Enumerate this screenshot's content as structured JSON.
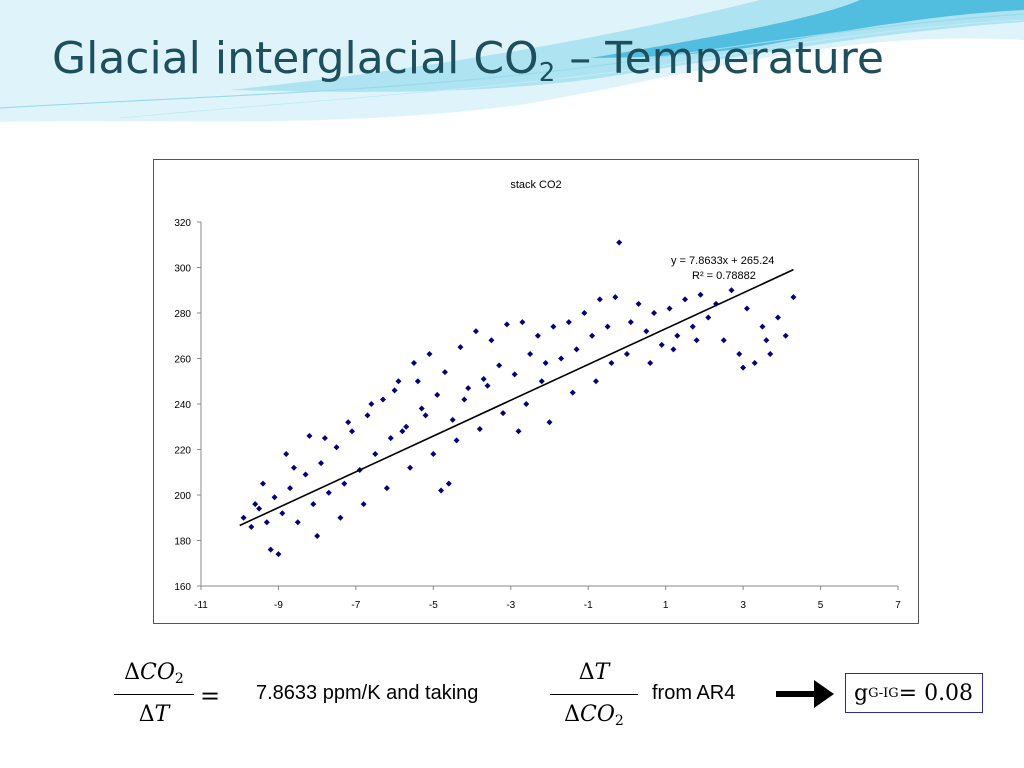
{
  "slide": {
    "title_main": "Glacial interglacial CO",
    "title_sub": "2",
    "title_rest": " – Temperature",
    "theme_colors": {
      "title": "#1d4f5c",
      "wave_light": "#cfeef6",
      "wave_mid": "#8fd4e8",
      "wave_dark": "#3bb3d6"
    }
  },
  "chart_data": {
    "type": "scatter",
    "title": "stack CO2",
    "xlim": [
      -11,
      7
    ],
    "ylim": [
      160,
      320
    ],
    "x_ticks": [
      "-11",
      "-9",
      "-7",
      "-5",
      "-3",
      "-1",
      "1",
      "3",
      "5",
      "7"
    ],
    "y_ticks": [
      "160",
      "180",
      "200",
      "220",
      "240",
      "260",
      "280",
      "300",
      "320"
    ],
    "grid": false,
    "legend": "none",
    "marker_color": "#000080",
    "trendline": {
      "slope": 7.8633,
      "intercept": 265.24,
      "x_range": [
        -10.0,
        4.3
      ],
      "color": "#000000",
      "equation_text": "y = 7.8633x + 265.24",
      "r2_text": "R² = 0.78882"
    },
    "points": [
      [
        -9.9,
        190
      ],
      [
        -9.7,
        186
      ],
      [
        -9.5,
        194
      ],
      [
        -9.3,
        188
      ],
      [
        -9.2,
        176
      ],
      [
        -9.0,
        174
      ],
      [
        -9.1,
        199
      ],
      [
        -8.9,
        192
      ],
      [
        -8.7,
        203
      ],
      [
        -8.5,
        188
      ],
      [
        -8.3,
        209
      ],
      [
        -8.1,
        196
      ],
      [
        -7.9,
        214
      ],
      [
        -7.7,
        201
      ],
      [
        -7.5,
        221
      ],
      [
        -7.3,
        205
      ],
      [
        -7.1,
        228
      ],
      [
        -6.9,
        211
      ],
      [
        -6.7,
        235
      ],
      [
        -6.5,
        218
      ],
      [
        -6.3,
        242
      ],
      [
        -6.1,
        225
      ],
      [
        -5.9,
        250
      ],
      [
        -5.7,
        230
      ],
      [
        -5.5,
        258
      ],
      [
        -5.3,
        238
      ],
      [
        -5.1,
        262
      ],
      [
        -4.9,
        244
      ],
      [
        -4.7,
        254
      ],
      [
        -4.5,
        233
      ],
      [
        -4.3,
        265
      ],
      [
        -4.1,
        247
      ],
      [
        -3.9,
        272
      ],
      [
        -3.7,
        251
      ],
      [
        -3.5,
        268
      ],
      [
        -3.3,
        257
      ],
      [
        -3.1,
        275
      ],
      [
        -2.9,
        253
      ],
      [
        -2.7,
        276
      ],
      [
        -2.5,
        262
      ],
      [
        -2.3,
        270
      ],
      [
        -2.1,
        258
      ],
      [
        -1.9,
        274
      ],
      [
        -1.7,
        260
      ],
      [
        -1.5,
        276
      ],
      [
        -1.3,
        264
      ],
      [
        -1.1,
        280
      ],
      [
        -0.9,
        270
      ],
      [
        -0.7,
        286
      ],
      [
        -0.5,
        274
      ],
      [
        -0.3,
        287
      ],
      [
        -0.2,
        311
      ],
      [
        0.1,
        276
      ],
      [
        0.3,
        284
      ],
      [
        0.5,
        272
      ],
      [
        0.7,
        280
      ],
      [
        0.9,
        266
      ],
      [
        1.1,
        282
      ],
      [
        1.3,
        270
      ],
      [
        1.5,
        286
      ],
      [
        1.7,
        274
      ],
      [
        1.9,
        288
      ],
      [
        2.1,
        278
      ],
      [
        2.3,
        284
      ],
      [
        2.5,
        268
      ],
      [
        2.7,
        290
      ],
      [
        2.9,
        262
      ],
      [
        3.1,
        282
      ],
      [
        3.3,
        258
      ],
      [
        3.5,
        274
      ],
      [
        3.7,
        262
      ],
      [
        3.9,
        278
      ],
      [
        4.1,
        270
      ],
      [
        4.3,
        287
      ],
      [
        -6.2,
        203
      ],
      [
        -5.6,
        212
      ],
      [
        -5.0,
        218
      ],
      [
        -4.4,
        224
      ],
      [
        -4.6,
        205
      ],
      [
        -4.8,
        202
      ],
      [
        -8.6,
        212
      ],
      [
        -8.0,
        182
      ],
      [
        -7.4,
        190
      ],
      [
        -6.8,
        196
      ],
      [
        -3.8,
        229
      ],
      [
        -3.2,
        236
      ],
      [
        -2.6,
        240
      ],
      [
        -2.0,
        232
      ],
      [
        -1.4,
        245
      ],
      [
        -0.8,
        250
      ],
      [
        -0.4,
        258
      ],
      [
        0.0,
        262
      ],
      [
        0.6,
        258
      ],
      [
        1.2,
        264
      ],
      [
        1.8,
        268
      ],
      [
        3.0,
        256
      ],
      [
        3.6,
        268
      ],
      [
        -7.8,
        225
      ],
      [
        -7.2,
        232
      ],
      [
        -6.6,
        240
      ],
      [
        -6.0,
        246
      ],
      [
        -5.4,
        250
      ],
      [
        -4.2,
        242
      ],
      [
        -3.6,
        248
      ],
      [
        -9.4,
        205
      ],
      [
        -8.8,
        218
      ],
      [
        -8.2,
        226
      ],
      [
        -9.6,
        196
      ],
      [
        -5.8,
        228
      ],
      [
        -5.2,
        235
      ],
      [
        -2.8,
        228
      ],
      [
        -2.2,
        250
      ]
    ]
  },
  "equation": {
    "left_num_delta": "Δ",
    "left_num_var": "CO",
    "left_num_sub": "2",
    "left_den_delta": "Δ",
    "left_den_var": "T",
    "equals": "=",
    "value_text": "7.8633 ppm/K  and taking",
    "right_num_delta": "Δ",
    "right_num_var": "T",
    "right_den_delta": "Δ",
    "right_den_var": "CO",
    "right_den_sub": "2",
    "source_text": "from AR4",
    "arrow_icon": "right-arrow-icon",
    "result_g": "g",
    "result_sub": "G-IG",
    "result_rest": "= 0.08",
    "result_border": "#2a2a9a"
  }
}
